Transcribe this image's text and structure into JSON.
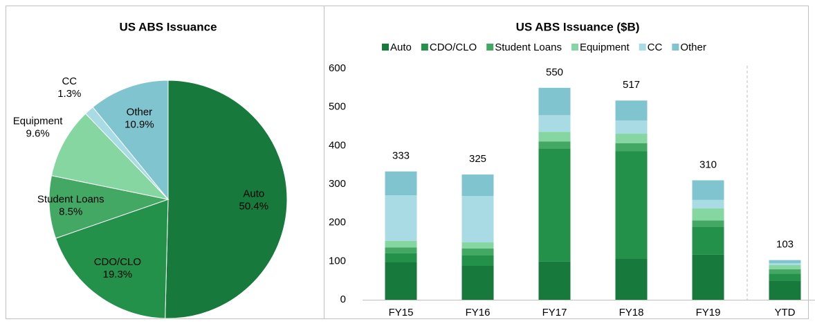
{
  "chart_data": [
    {
      "type": "pie",
      "title": "US ABS Issuance",
      "categories": [
        "Auto",
        "CDO/CLO",
        "Student Loans",
        "Equipment",
        "CC",
        "Other"
      ],
      "values": [
        50.4,
        19.3,
        8.5,
        9.6,
        1.3,
        10.9
      ],
      "value_labels": [
        "50.4%",
        "19.3%",
        "8.5%",
        "9.6%",
        "1.3%",
        "10.9%"
      ],
      "colors": [
        "#17793b",
        "#23914a",
        "#44a865",
        "#86d6a1",
        "#a8dbe4",
        "#80c4d0"
      ]
    },
    {
      "type": "stacked_bar",
      "title": "US ABS Issuance ($B)",
      "categories": [
        "FY15",
        "FY16",
        "FY17",
        "FY18",
        "FY19",
        "YTD"
      ],
      "series": [
        {
          "name": "Auto",
          "color": "#17793b",
          "values": [
            97,
            88,
            99,
            106,
            117,
            50
          ]
        },
        {
          "name": "CDO/CLO",
          "color": "#23914a",
          "values": [
            24,
            27,
            294,
            280,
            73,
            18
          ]
        },
        {
          "name": "Student Loans",
          "color": "#44a865",
          "values": [
            15,
            18,
            18,
            20,
            16,
            11
          ]
        },
        {
          "name": "Equipment",
          "color": "#86d6a1",
          "values": [
            17,
            16,
            25,
            25,
            31,
            11
          ]
        },
        {
          "name": "CC",
          "color": "#a8dbe4",
          "values": [
            118,
            120,
            43,
            34,
            22,
            5
          ]
        },
        {
          "name": "Other",
          "color": "#80c4d0",
          "values": [
            62,
            56,
            71,
            52,
            51,
            8
          ]
        }
      ],
      "totals": [
        333,
        325,
        550,
        517,
        310,
        103
      ],
      "ylim": [
        0,
        600
      ],
      "yticks": [
        0,
        100,
        200,
        300,
        400,
        500,
        600
      ],
      "legend": "top"
    }
  ]
}
